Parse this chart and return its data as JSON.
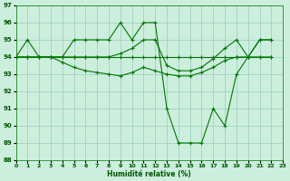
{
  "xlabel": "Humidité relative (%)",
  "bg_color": "#cceedd",
  "grid_color": "#99ccbb",
  "line_color": "#007700",
  "ylim": [
    88,
    97
  ],
  "xlim": [
    0,
    23
  ],
  "yticks": [
    88,
    89,
    90,
    91,
    92,
    93,
    94,
    95,
    96,
    97
  ],
  "xticks": [
    0,
    1,
    2,
    3,
    4,
    5,
    6,
    7,
    8,
    9,
    10,
    11,
    12,
    13,
    14,
    15,
    16,
    17,
    18,
    19,
    20,
    21,
    22,
    23
  ],
  "s1_x": [
    0,
    1,
    2,
    3,
    4,
    5,
    6,
    7,
    8,
    9,
    10,
    11,
    12,
    13,
    14,
    15,
    16,
    17,
    18,
    19,
    20,
    21,
    22
  ],
  "s1_y": [
    94,
    95,
    94,
    94,
    94,
    95,
    95,
    95,
    95,
    96,
    95,
    96,
    96,
    91,
    89,
    89,
    89,
    91,
    90,
    93,
    94,
    95,
    95
  ],
  "s2_x": [
    0,
    1,
    2,
    3,
    4,
    5,
    6,
    7,
    8,
    9,
    10,
    11,
    12,
    13,
    14,
    15,
    16,
    17,
    18,
    19,
    20,
    21,
    22
  ],
  "s2_y": [
    94,
    94,
    94,
    94,
    94,
    94,
    94,
    94,
    94,
    94,
    94,
    94,
    94,
    94,
    94,
    94,
    94,
    94,
    94,
    94,
    94,
    94,
    94
  ],
  "s3_x": [
    0,
    1,
    2,
    3,
    4,
    5,
    6,
    7,
    8,
    9,
    10,
    11,
    12,
    13,
    14,
    15,
    16,
    17,
    18,
    19,
    20,
    21,
    22
  ],
  "s3_y": [
    94,
    94,
    94,
    94,
    93.7,
    93.4,
    93.2,
    93.1,
    93.0,
    92.9,
    93.1,
    93.4,
    93.2,
    93.0,
    92.9,
    92.9,
    93.1,
    93.4,
    93.8,
    94,
    94,
    94,
    94
  ],
  "s4_x": [
    0,
    1,
    2,
    3,
    4,
    5,
    6,
    7,
    8,
    9,
    10,
    11,
    12,
    13,
    14,
    15,
    16,
    17,
    18,
    19,
    20,
    21,
    22
  ],
  "s4_y": [
    94,
    94,
    94,
    94,
    94,
    94,
    94,
    94,
    94,
    94.2,
    94.5,
    95,
    95,
    93.5,
    93.2,
    93.2,
    93.4,
    93.9,
    94.5,
    95,
    94,
    95,
    95
  ]
}
